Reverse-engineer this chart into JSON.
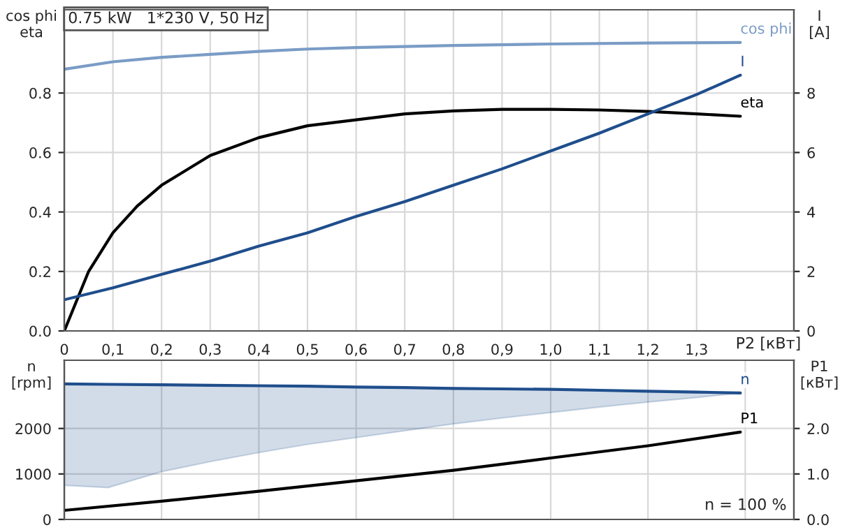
{
  "chart_data": [
    {
      "type": "line",
      "title": "0.75 kW   1*230 V, 50 Hz",
      "xlabel": "P2 [кВт]",
      "ylabel": "cos phi\neta",
      "y2label": "I\n[A]",
      "xlim": [
        0,
        1.5
      ],
      "xticks": [
        0,
        {
          "value": 0.1,
          "label": "0,1"
        },
        {
          "value": 0.2,
          "label": "0,2"
        },
        {
          "value": 0.3,
          "label": "0,3"
        },
        {
          "value": 0.4,
          "label": "0,4"
        },
        {
          "value": 0.5,
          "label": "0,5"
        },
        {
          "value": 0.6,
          "label": "0,6"
        },
        {
          "value": 0.7,
          "label": "0,7"
        },
        {
          "value": 0.8,
          "label": "0,8"
        },
        {
          "value": 0.9,
          "label": "0,9"
        },
        {
          "value": 1.0,
          "label": "1,0"
        },
        {
          "value": 1.1,
          "label": "1,1"
        },
        {
          "value": 1.2,
          "label": "1,2"
        },
        {
          "value": 1.3,
          "label": "1,3"
        }
      ],
      "ylim": [
        0,
        1.08
      ],
      "yticks": [
        {
          "value": 0,
          "label": "0.0"
        },
        0.2,
        0.4,
        0.6,
        0.8
      ],
      "y2lim": [
        0,
        10.8
      ],
      "y2ticks": [
        0,
        2,
        4,
        6,
        8
      ],
      "grid": true,
      "legend": false,
      "series": [
        {
          "name": "cos phi",
          "color": "#7a9cc6",
          "x": [
            0,
            0.1,
            0.2,
            0.3,
            0.4,
            0.5,
            0.6,
            0.8,
            1.0,
            1.2,
            1.39
          ],
          "values": [
            0.88,
            0.905,
            0.92,
            0.93,
            0.94,
            0.948,
            0.953,
            0.96,
            0.965,
            0.968,
            0.97
          ]
        },
        {
          "name": "I",
          "color": "#1f4e8c",
          "axis": "y2",
          "x": [
            0,
            0.1,
            0.2,
            0.3,
            0.4,
            0.5,
            0.6,
            0.7,
            0.8,
            0.9,
            1.0,
            1.1,
            1.2,
            1.3,
            1.39
          ],
          "values": [
            1.05,
            1.45,
            1.9,
            2.35,
            2.85,
            3.3,
            3.85,
            4.35,
            4.9,
            5.45,
            6.05,
            6.65,
            7.3,
            7.95,
            8.6
          ]
        },
        {
          "name": "eta",
          "color": "#000000",
          "x": [
            0,
            0.05,
            0.1,
            0.15,
            0.2,
            0.3,
            0.4,
            0.5,
            0.6,
            0.7,
            0.8,
            0.9,
            1.0,
            1.1,
            1.2,
            1.3,
            1.39
          ],
          "values": [
            0,
            0.2,
            0.33,
            0.42,
            0.49,
            0.59,
            0.65,
            0.69,
            0.71,
            0.73,
            0.74,
            0.745,
            0.745,
            0.743,
            0.738,
            0.73,
            0.722
          ]
        }
      ]
    },
    {
      "type": "line",
      "ylabel": "n\n[rpm]",
      "y2label": "P1\n[кВт]",
      "annotations": [
        "n = 100 %"
      ],
      "xlim": [
        0,
        1.5
      ],
      "tick_labels": "y",
      "ylim": [
        0,
        3500
      ],
      "yticks": [
        0,
        1000,
        2000
      ],
      "y2lim": [
        0,
        3.5
      ],
      "y2ticks": [
        {
          "value": 0,
          "label": "0.0"
        },
        {
          "value": 1,
          "label": "1.0"
        },
        {
          "value": 2,
          "label": "2.0"
        }
      ],
      "grid": true,
      "legend": false,
      "series": [
        {
          "name": "n",
          "color": "#1f4e8c",
          "x": [
            0,
            0.09,
            0.2,
            0.3,
            0.4,
            0.5,
            0.6,
            0.7,
            0.8,
            0.9,
            1.0,
            1.1,
            1.2,
            1.3,
            1.39
          ],
          "values": [
            2980,
            2970,
            2960,
            2950,
            2940,
            2930,
            2910,
            2900,
            2880,
            2870,
            2860,
            2840,
            2820,
            2800,
            2780
          ],
          "lower": [
            750,
            700,
            1050,
            1270,
            1470,
            1650,
            1800,
            1950,
            2100,
            2230,
            2350,
            2470,
            2580,
            2680,
            2780
          ],
          "upper": [
            2980,
            2970,
            2960,
            2950,
            2940,
            2930,
            2910,
            2900,
            2880,
            2870,
            2860,
            2840,
            2820,
            2800,
            2780
          ]
        },
        {
          "name": "P1",
          "color": "#000000",
          "axis": "y2",
          "x": [
            0,
            0.2,
            0.4,
            0.6,
            0.8,
            1.0,
            1.2,
            1.39
          ],
          "values": [
            0.2,
            0.4,
            0.62,
            0.85,
            1.08,
            1.35,
            1.62,
            1.92
          ]
        }
      ]
    }
  ]
}
